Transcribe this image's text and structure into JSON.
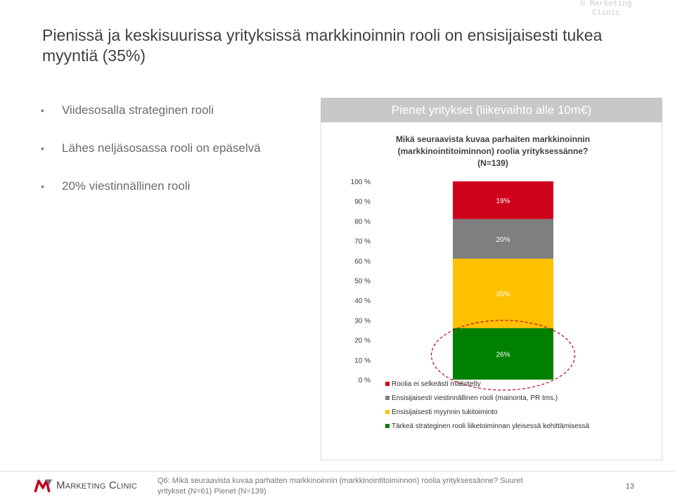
{
  "copyright": "© Marketing Clinic",
  "title": "Pienissä ja keskisuurissa yrityksissä markkinoinnin rooli on ensisijaisesti tukea myyntiä (35%)",
  "bullets": [
    "Viidesosalla strateginen rooli",
    "Lähes neljäsosassa rooli on epäselvä",
    "20% viestinnällinen rooli"
  ],
  "panel_header": "Pienet yritykset (liikevaihto alle 10m€)",
  "chart_data": {
    "type": "bar",
    "stacked": true,
    "title_lines": [
      "Mikä seuraavista kuvaa parhaiten markkinoinnin",
      "(markkinointitoiminnon) roolia yrityksessänne?",
      "(N=139)"
    ],
    "categories": [
      ""
    ],
    "ylim": [
      0,
      100
    ],
    "y_ticks": [
      "0 %",
      "10 %",
      "20 %",
      "30 %",
      "40 %",
      "50 %",
      "60 %",
      "70 %",
      "80 %",
      "90 %",
      "100 %"
    ],
    "series": [
      {
        "name": "Tärkeä strateginen rooli liiketoiminnan yleisessä kehittämisessä",
        "values": [
          26
        ],
        "label": "26%",
        "color": "#008000"
      },
      {
        "name": "Ensisijaisesti myynnin tukitoiminto",
        "values": [
          35
        ],
        "label": "35%",
        "color": "#ffc000"
      },
      {
        "name": "Ensisijaisesti viestinnällinen rooli (mainonta, PR tms.)",
        "values": [
          20
        ],
        "label": "20%",
        "color": "#7f7f7f"
      },
      {
        "name": "Roolia ei selkeästi määritelty",
        "values": [
          19
        ],
        "label": "19%",
        "color": "#d0021b"
      }
    ],
    "legend_order": [
      3,
      2,
      1,
      0
    ],
    "legend_position": "bottom",
    "grid": false,
    "highlight_color": "#c0001a"
  },
  "footer": {
    "logo_text": "Marketing Clinic",
    "note": "Q6: Mikä seuraavista kuvaa parhaiten markkinoinnin (markkinointitoiminnon) roolia yrityksessänne? Suuret yritykset (N=61) Pienet (N=139)",
    "page": "13"
  }
}
